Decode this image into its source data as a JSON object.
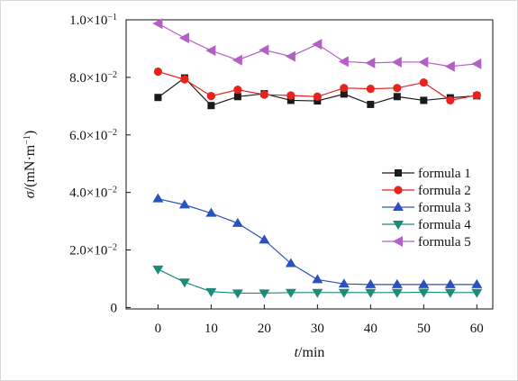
{
  "chart_data": {
    "type": "line",
    "title": "",
    "xlabel": {
      "italic": "t",
      "rest": "/min"
    },
    "ylabel": {
      "italic": "σ",
      "rest": "/(mN·m",
      "sup": "−1",
      "close": ")"
    },
    "xlim": [
      -6,
      63
    ],
    "ylim": [
      -0.0005,
      0.1
    ],
    "x_ticks": [
      0,
      10,
      20,
      30,
      40,
      50,
      60
    ],
    "y_ticks": [
      {
        "value": 0,
        "mant": "0",
        "exp": ""
      },
      {
        "value": 0.02,
        "mant": "2.0×10",
        "exp": "−2"
      },
      {
        "value": 0.04,
        "mant": "4.0×10",
        "exp": "−2"
      },
      {
        "value": 0.06,
        "mant": "6.0×10",
        "exp": "−2"
      },
      {
        "value": 0.08,
        "mant": "8.0×10",
        "exp": "−2"
      },
      {
        "value": 0.1,
        "mant": "1.0×10",
        "exp": "−1"
      }
    ],
    "grid": false,
    "legend_position": "right-middle",
    "x": [
      0,
      5,
      10,
      15,
      20,
      25,
      30,
      35,
      40,
      45,
      50,
      55,
      60
    ],
    "series": [
      {
        "name": "formula 1",
        "color": "#1a1a1a",
        "marker": "square",
        "values": [
          0.073,
          0.0798,
          0.0702,
          0.0733,
          0.0743,
          0.072,
          0.0718,
          0.0742,
          0.0706,
          0.0733,
          0.072,
          0.0729,
          0.0736
        ]
      },
      {
        "name": "formula 2",
        "color": "#e8231e",
        "marker": "circle",
        "values": [
          0.082,
          0.0793,
          0.0735,
          0.0757,
          0.074,
          0.0737,
          0.0733,
          0.0763,
          0.076,
          0.0763,
          0.0782,
          0.072,
          0.0738
        ]
      },
      {
        "name": "formula 3",
        "color": "#2a52be",
        "marker": "triangle-up",
        "values": [
          0.0378,
          0.0357,
          0.0328,
          0.0293,
          0.0235,
          0.0153,
          0.0097,
          0.0082,
          0.008,
          0.008,
          0.008,
          0.008,
          0.008
        ]
      },
      {
        "name": "formula 4",
        "color": "#1f8a7a",
        "marker": "triangle-down",
        "values": [
          0.0133,
          0.0088,
          0.0055,
          0.005,
          0.005,
          0.0052,
          0.0052,
          0.0052,
          0.0052,
          0.0052,
          0.0053,
          0.0052,
          0.0052
        ]
      },
      {
        "name": "formula 5",
        "color": "#b25fc6",
        "marker": "triangle-left",
        "values": [
          0.0987,
          0.0937,
          0.0893,
          0.086,
          0.0895,
          0.0873,
          0.0915,
          0.0855,
          0.085,
          0.0853,
          0.0853,
          0.0838,
          0.0847
        ]
      }
    ]
  }
}
